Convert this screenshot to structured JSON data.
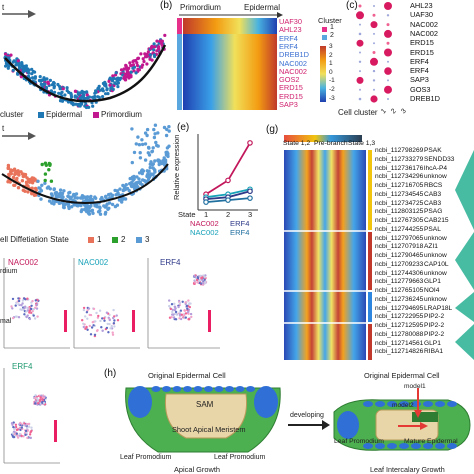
{
  "panels": {
    "a": {
      "arrow_label": "t",
      "legend_title": "cluster",
      "legend": [
        {
          "label": "Epidermal",
          "color": "#1f77b4"
        },
        {
          "label": "Primordium",
          "color": "#c2188f"
        }
      ]
    },
    "b": {
      "letter": "(b)",
      "left_label": "Primordium",
      "right_label": "Epidermal",
      "cluster_title": "Cluster",
      "cluster_items": [
        {
          "label": "1",
          "color": "#e7308a"
        },
        {
          "label": "2",
          "color": "#5aa7e0"
        }
      ],
      "colorbar_ticks": [
        "3",
        "2",
        "1",
        "0",
        "-1",
        "-2",
        "-3"
      ],
      "genes": [
        {
          "name": "UAF30",
          "color": "#d0216e"
        },
        {
          "name": "AHL23",
          "color": "#d0216e"
        },
        {
          "name": "ERF4",
          "color": "#3b6fd1"
        },
        {
          "name": "ERF4",
          "color": "#3b6fd1"
        },
        {
          "name": "DREB1D",
          "color": "#3b6fd1"
        },
        {
          "name": "NAC002",
          "color": "#3b6fd1"
        },
        {
          "name": "NAC002",
          "color": "#d0216e"
        },
        {
          "name": "GOS2",
          "color": "#d0216e"
        },
        {
          "name": "ERD15",
          "color": "#d0216e"
        },
        {
          "name": "ERD15",
          "color": "#d0216e"
        },
        {
          "name": "SAP3",
          "color": "#d0216e"
        }
      ]
    },
    "c": {
      "letter": "(c)",
      "genes": [
        "AHL23",
        "UAF30",
        "NAC002",
        "NAC002",
        "ERD15",
        "ERD15",
        "ERF4",
        "ERF4",
        "SAP3",
        "GOS3",
        "DREB1D"
      ],
      "xlabel": "Cell cluster",
      "x_ticks": [
        "1",
        "2",
        "3"
      ]
    },
    "d": {
      "arrow_label": "t",
      "legend_title": "ell Diffetiation State",
      "legend": [
        {
          "label": "1",
          "color": "#e8725a"
        },
        {
          "label": "2",
          "color": "#2ca02c"
        },
        {
          "label": "3",
          "color": "#5b9bd5"
        }
      ]
    },
    "e": {
      "letter": "(e)",
      "ylabel": "Relative expression",
      "xlabel": "State",
      "x_ticks": [
        "1",
        "2",
        "3"
      ],
      "lines": [
        {
          "name": "NAC002",
          "color": "#c2185b",
          "values": [
            1.6,
            3.0,
            6.8
          ]
        },
        {
          "name": "NAC002",
          "color": "#17a2b8",
          "values": [
            1.3,
            1.6,
            2.1
          ]
        },
        {
          "name": "ERF4",
          "color": "#2e3a87",
          "values": [
            1.1,
            1.3,
            1.9
          ]
        },
        {
          "name": "ERF4",
          "color": "#1f6f9f",
          "values": [
            0.8,
            1.0,
            1.2
          ]
        }
      ],
      "legend_rows": [
        [
          {
            "name": "NAC002",
            "color": "#c2185b"
          },
          {
            "name": "ERF4",
            "color": "#2e3a87"
          }
        ],
        [
          {
            "name": "NAC002",
            "color": "#17a2b8"
          },
          {
            "name": "ERF4",
            "color": "#1f6f9f"
          }
        ]
      ]
    },
    "f": {
      "titles": [
        {
          "text": "NAC002",
          "color": "#c2185b"
        },
        {
          "text": "NAC002",
          "color": "#17a2b8"
        },
        {
          "text": "ERF4",
          "color": "#2e3a87"
        },
        {
          "text": "ERF4",
          "color": "#1f9a6f"
        }
      ],
      "sublabels": [
        "rdium",
        "mal"
      ]
    },
    "g": {
      "letter": "(g)",
      "header": [
        "State 1,2",
        "Pre-branch",
        "State 1,3"
      ],
      "genes": [
        {
          "id": "ncbi_112798269",
          "name": "PSAK"
        },
        {
          "id": "ncbi_112733279",
          "name": "SENDD33"
        },
        {
          "id": "ncbi_112736176",
          "name": "lhcA-P4"
        },
        {
          "id": "ncbi_112734296",
          "name": "unknow"
        },
        {
          "id": "ncbi_112716705",
          "name": "RBCS"
        },
        {
          "id": "ncbi_112734545",
          "name": "CAB3"
        },
        {
          "id": "ncbi_112734725",
          "name": "CAB3"
        },
        {
          "id": "ncbi_112803125",
          "name": "PSAG"
        },
        {
          "id": "ncbi_112767305",
          "name": "CAB215"
        },
        {
          "id": "ncbi_112744255",
          "name": "PSAL"
        },
        {
          "id": "ncbi_112797065",
          "name": "unknow"
        },
        {
          "id": "ncbi_112707918",
          "name": "AZI1"
        },
        {
          "id": "ncbi_112790465",
          "name": "unknow"
        },
        {
          "id": "ncbi_112709233",
          "name": "CAP10L"
        },
        {
          "id": "ncbi_112744306",
          "name": "unknow"
        },
        {
          "id": "ncbi_112779663",
          "name": "GLP1"
        },
        {
          "id": "ncbi_112765105",
          "name": "NOI4"
        },
        {
          "id": "ncbi_112736245",
          "name": "unknow"
        },
        {
          "id": "ncbi_112794695",
          "name": "LRAP18L"
        },
        {
          "id": "ncbi_112722955",
          "name": "PIP2-2"
        },
        {
          "id": "ncbi_112712595",
          "name": "PIP2-2"
        },
        {
          "id": "ncbi_112780088",
          "name": "PIP2-2"
        },
        {
          "id": "ncbi_112714561",
          "name": "GLP1"
        },
        {
          "id": "ncbi_112714826",
          "name": "RIBA1"
        }
      ]
    },
    "h": {
      "letter": "(h)",
      "top_label": "Original   Epidermal   Cell",
      "sam": "SAM",
      "meristem": "Shoot Apical Meristem",
      "leaf_left": "Leaf Promodium",
      "leaf_right": "Leaf Promodium",
      "growth_left": "Apical Growth",
      "developing": "developing",
      "right_top": "Original Epidermal Cell",
      "model1": "model1",
      "model2": "model2",
      "leaf_right2": "Leaf Promodium",
      "mature": "Mature Epidermal",
      "growth_right": "Leaf Intercalary Growth"
    }
  }
}
